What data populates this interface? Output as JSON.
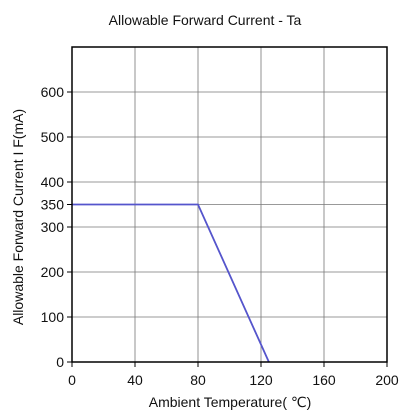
{
  "chart_data": {
    "type": "line",
    "title": "Allowable Forward Current - Ta",
    "xlabel": "Ambient Temperature( ℃)",
    "ylabel": "Allowable Forward Current I F(mA)",
    "x_ticks": [
      0,
      40,
      80,
      120,
      160,
      200
    ],
    "y_ticks": [
      0,
      100,
      200,
      300,
      350,
      400,
      500,
      600
    ],
    "xlim": [
      0,
      200
    ],
    "ylim": [
      0,
      700
    ],
    "grid": true,
    "legend": "none",
    "series": [
      {
        "x": [
          0,
          80,
          125
        ],
        "y": [
          350,
          350,
          0
        ],
        "color": "#5555cc"
      }
    ]
  }
}
